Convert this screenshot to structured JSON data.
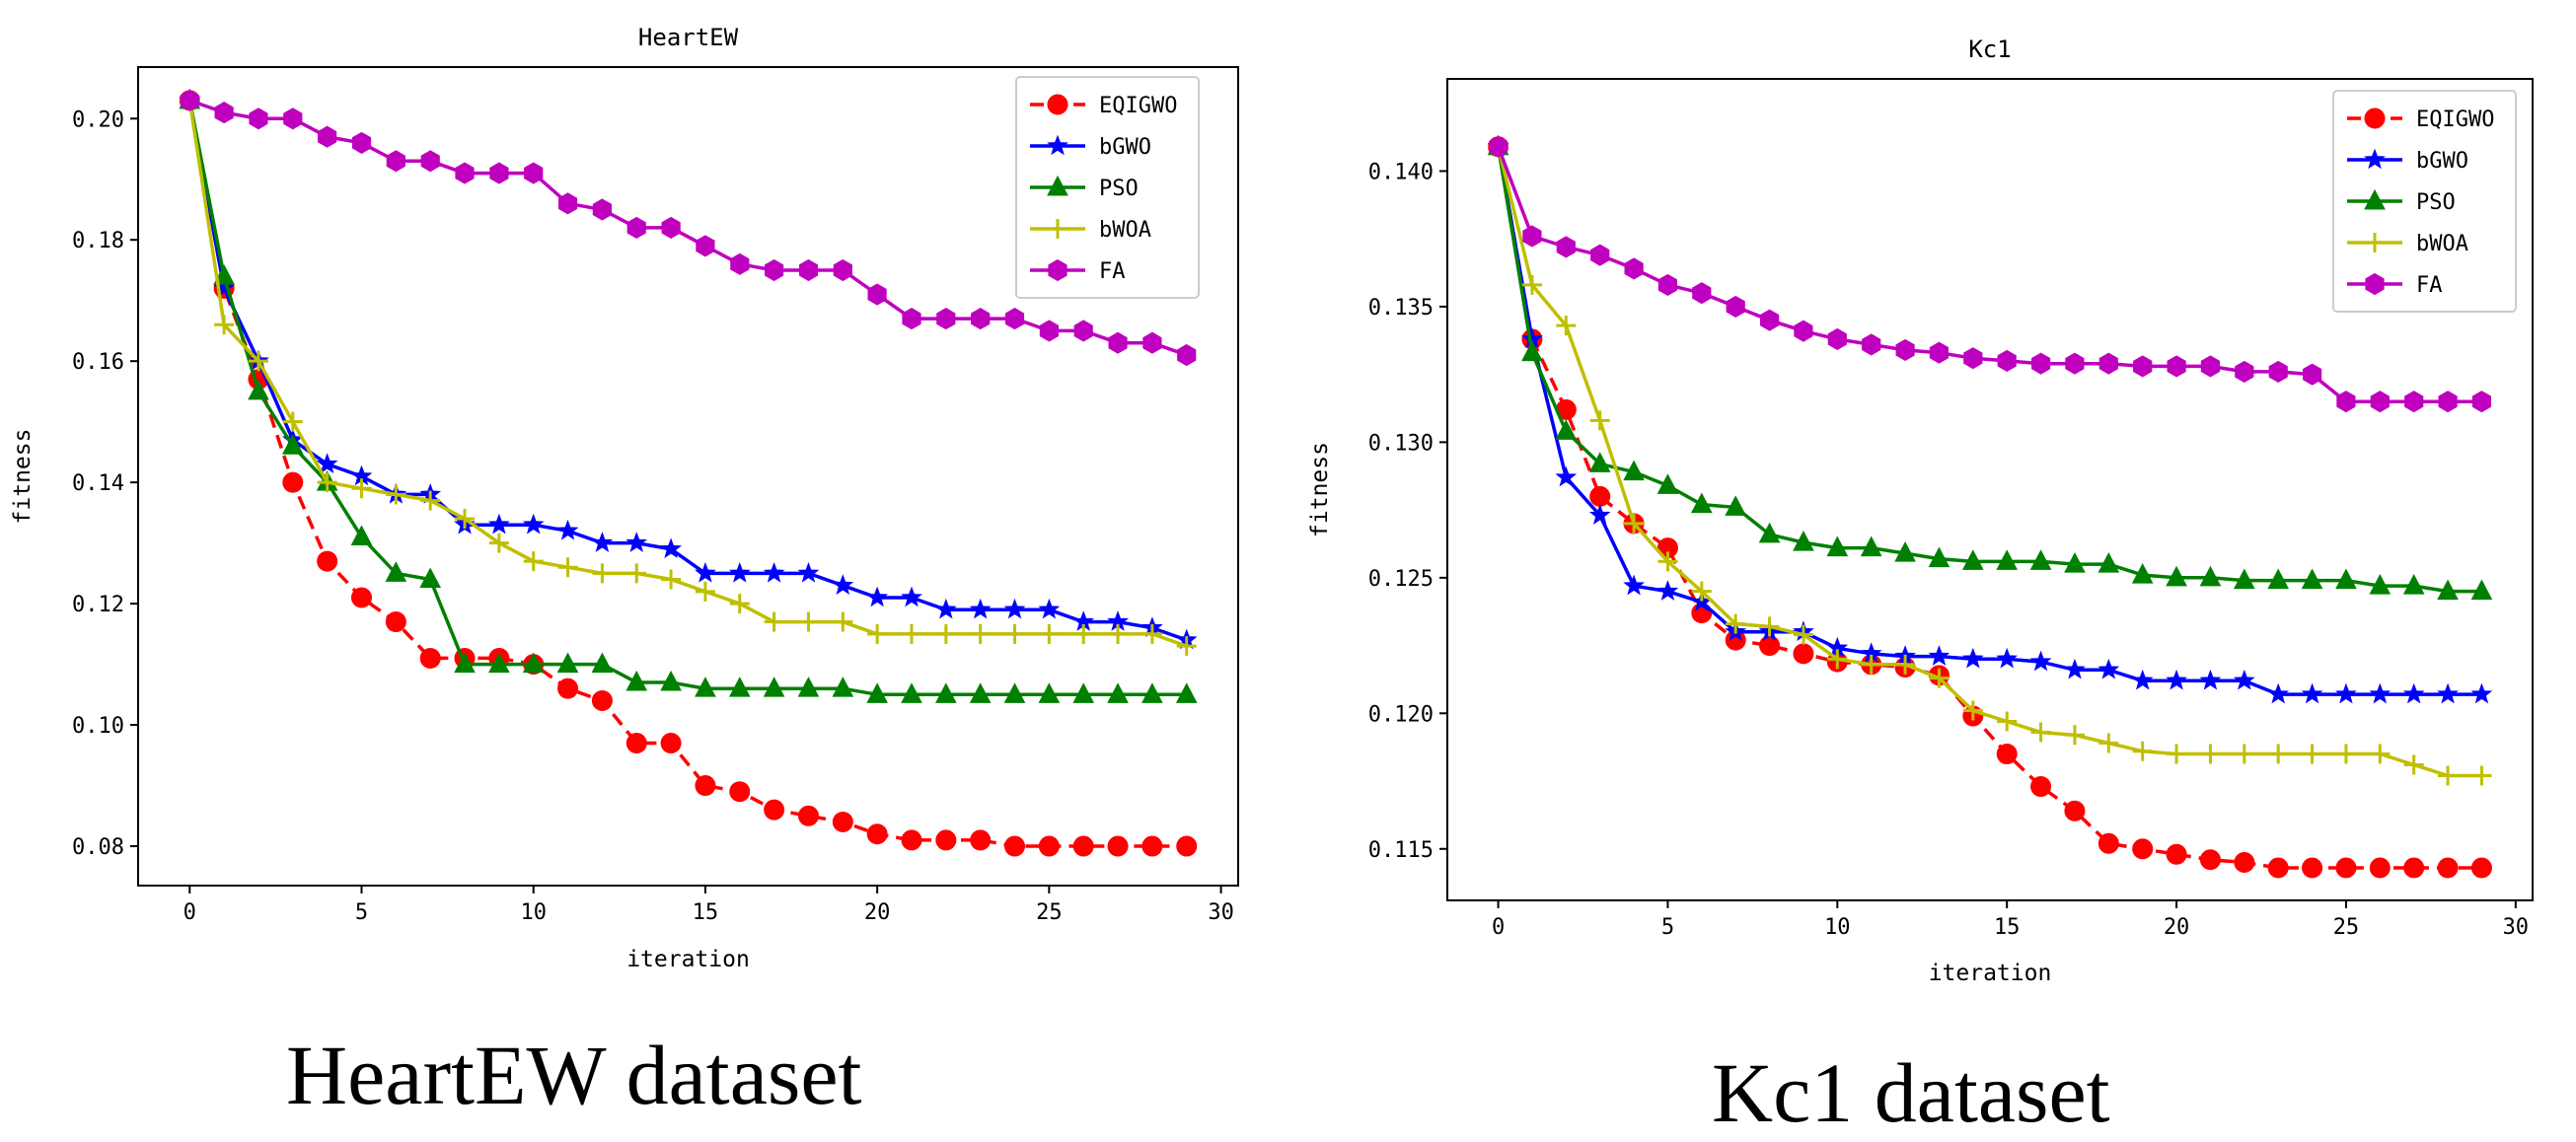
{
  "captions": {
    "left": "HeartEW dataset",
    "right": "Kc1 dataset"
  },
  "colors": {
    "EQIGWO": "#ff0000",
    "bGWO": "#0000ff",
    "PSO": "#008000",
    "bWOA": "#bfbf00",
    "FA": "#bf00bf"
  },
  "chart_data": [
    {
      "type": "line",
      "title": "HeartEW",
      "xlabel": "iteration",
      "ylabel": "fitness",
      "xlim": [
        -1.5,
        30.5
      ],
      "ylim": [
        0.0735,
        0.2085
      ],
      "xticks": [
        0,
        5,
        10,
        15,
        20,
        25,
        30
      ],
      "xtick_labels": [
        "0",
        "5",
        "10",
        "15",
        "20",
        "25",
        "30"
      ],
      "yticks": [
        0.08,
        0.1,
        0.12,
        0.14,
        0.16,
        0.18,
        0.2
      ],
      "ytick_labels": [
        "0.08",
        "0.10",
        "0.12",
        "0.14",
        "0.16",
        "0.18",
        "0.20"
      ],
      "legend_position": "top-right",
      "x": [
        0,
        1,
        2,
        3,
        4,
        5,
        6,
        7,
        8,
        9,
        10,
        11,
        12,
        13,
        14,
        15,
        16,
        17,
        18,
        19,
        20,
        21,
        22,
        23,
        24,
        25,
        26,
        27,
        28,
        29
      ],
      "series": [
        {
          "name": "EQIGWO",
          "marker": "circle",
          "dashed": true,
          "values": [
            0.203,
            0.172,
            0.157,
            0.14,
            0.127,
            0.121,
            0.117,
            0.111,
            0.111,
            0.111,
            0.11,
            0.106,
            0.104,
            0.097,
            0.097,
            0.09,
            0.089,
            0.086,
            0.085,
            0.084,
            0.082,
            0.081,
            0.081,
            0.081,
            0.08,
            0.08,
            0.08,
            0.08,
            0.08,
            0.08
          ]
        },
        {
          "name": "bGWO",
          "marker": "star",
          "dashed": false,
          "values": [
            0.203,
            0.172,
            0.16,
            0.147,
            0.143,
            0.141,
            0.138,
            0.138,
            0.133,
            0.133,
            0.133,
            0.132,
            0.13,
            0.13,
            0.129,
            0.125,
            0.125,
            0.125,
            0.125,
            0.123,
            0.121,
            0.121,
            0.119,
            0.119,
            0.119,
            0.119,
            0.117,
            0.117,
            0.116,
            0.114
          ]
        },
        {
          "name": "PSO",
          "marker": "triangle",
          "dashed": false,
          "values": [
            0.203,
            0.174,
            0.155,
            0.146,
            0.14,
            0.131,
            0.125,
            0.124,
            0.11,
            0.11,
            0.11,
            0.11,
            0.11,
            0.107,
            0.107,
            0.106,
            0.106,
            0.106,
            0.106,
            0.106,
            0.105,
            0.105,
            0.105,
            0.105,
            0.105,
            0.105,
            0.105,
            0.105,
            0.105,
            0.105
          ]
        },
        {
          "name": "bWOA",
          "marker": "plus",
          "dashed": false,
          "values": [
            0.203,
            0.166,
            0.16,
            0.15,
            0.14,
            0.139,
            0.138,
            0.137,
            0.134,
            0.13,
            0.127,
            0.126,
            0.125,
            0.125,
            0.124,
            0.122,
            0.12,
            0.117,
            0.117,
            0.117,
            0.115,
            0.115,
            0.115,
            0.115,
            0.115,
            0.115,
            0.115,
            0.115,
            0.115,
            0.113
          ]
        },
        {
          "name": "FA",
          "marker": "hexagon",
          "dashed": false,
          "values": [
            0.203,
            0.201,
            0.2,
            0.2,
            0.197,
            0.196,
            0.193,
            0.193,
            0.191,
            0.191,
            0.191,
            0.186,
            0.185,
            0.182,
            0.182,
            0.179,
            0.176,
            0.175,
            0.175,
            0.175,
            0.171,
            0.167,
            0.167,
            0.167,
            0.167,
            0.165,
            0.165,
            0.163,
            0.163,
            0.161
          ]
        }
      ]
    },
    {
      "type": "line",
      "title": "Kc1",
      "xlabel": "iteration",
      "ylabel": "fitness",
      "xlim": [
        -1.5,
        30.5
      ],
      "ylim": [
        0.1131,
        0.1434
      ],
      "xticks": [
        0,
        5,
        10,
        15,
        20,
        25,
        30
      ],
      "xtick_labels": [
        "0",
        "5",
        "10",
        "15",
        "20",
        "25",
        "30"
      ],
      "yticks": [
        0.115,
        0.12,
        0.125,
        0.13,
        0.135,
        0.14
      ],
      "ytick_labels": [
        "0.115",
        "0.120",
        "0.125",
        "0.130",
        "0.135",
        "0.140"
      ],
      "legend_position": "top-right",
      "x": [
        0,
        1,
        2,
        3,
        4,
        5,
        6,
        7,
        8,
        9,
        10,
        11,
        12,
        13,
        14,
        15,
        16,
        17,
        18,
        19,
        20,
        21,
        22,
        23,
        24,
        25,
        26,
        27,
        28,
        29
      ],
      "series": [
        {
          "name": "EQIGWO",
          "marker": "circle",
          "dashed": true,
          "values": [
            0.1409,
            0.1338,
            0.1312,
            0.128,
            0.127,
            0.1261,
            0.1237,
            0.1227,
            0.1225,
            0.1222,
            0.1219,
            0.1218,
            0.1217,
            0.1214,
            0.1199,
            0.1185,
            0.1173,
            0.1164,
            0.1152,
            0.115,
            0.1148,
            0.1146,
            0.1145,
            0.1143,
            0.1143,
            0.1143,
            0.1143,
            0.1143,
            0.1143,
            0.1143
          ]
        },
        {
          "name": "bGWO",
          "marker": "star",
          "dashed": false,
          "values": [
            0.1409,
            0.1338,
            0.1287,
            0.1273,
            0.1247,
            0.1245,
            0.1241,
            0.123,
            0.123,
            0.123,
            0.1224,
            0.1222,
            0.1221,
            0.1221,
            0.122,
            0.122,
            0.1219,
            0.1216,
            0.1216,
            0.1212,
            0.1212,
            0.1212,
            0.1212,
            0.1207,
            0.1207,
            0.1207,
            0.1207,
            0.1207,
            0.1207,
            0.1207
          ]
        },
        {
          "name": "PSO",
          "marker": "triangle",
          "dashed": false,
          "values": [
            0.1409,
            0.1333,
            0.1304,
            0.1292,
            0.1289,
            0.1284,
            0.1277,
            0.1276,
            0.1266,
            0.1263,
            0.1261,
            0.1261,
            0.1259,
            0.1257,
            0.1256,
            0.1256,
            0.1256,
            0.1255,
            0.1255,
            0.1251,
            0.125,
            0.125,
            0.1249,
            0.1249,
            0.1249,
            0.1249,
            0.1247,
            0.1247,
            0.1245,
            0.1245
          ]
        },
        {
          "name": "bWOA",
          "marker": "plus",
          "dashed": false,
          "values": [
            0.1409,
            0.1358,
            0.1343,
            0.1308,
            0.127,
            0.1256,
            0.1245,
            0.1233,
            0.1232,
            0.1229,
            0.122,
            0.1218,
            0.1218,
            0.1213,
            0.1201,
            0.1197,
            0.1193,
            0.1192,
            0.1189,
            0.1186,
            0.1185,
            0.1185,
            0.1185,
            0.1185,
            0.1185,
            0.1185,
            0.1185,
            0.1181,
            0.1177,
            0.1177
          ]
        },
        {
          "name": "FA",
          "marker": "hexagon",
          "dashed": false,
          "values": [
            0.1409,
            0.1376,
            0.1372,
            0.1369,
            0.1364,
            0.1358,
            0.1355,
            0.135,
            0.1345,
            0.1341,
            0.1338,
            0.1336,
            0.1334,
            0.1333,
            0.1331,
            0.133,
            0.1329,
            0.1329,
            0.1329,
            0.1328,
            0.1328,
            0.1328,
            0.1326,
            0.1326,
            0.1325,
            0.1315,
            0.1315,
            0.1315,
            0.1315,
            0.1315
          ]
        }
      ]
    }
  ]
}
